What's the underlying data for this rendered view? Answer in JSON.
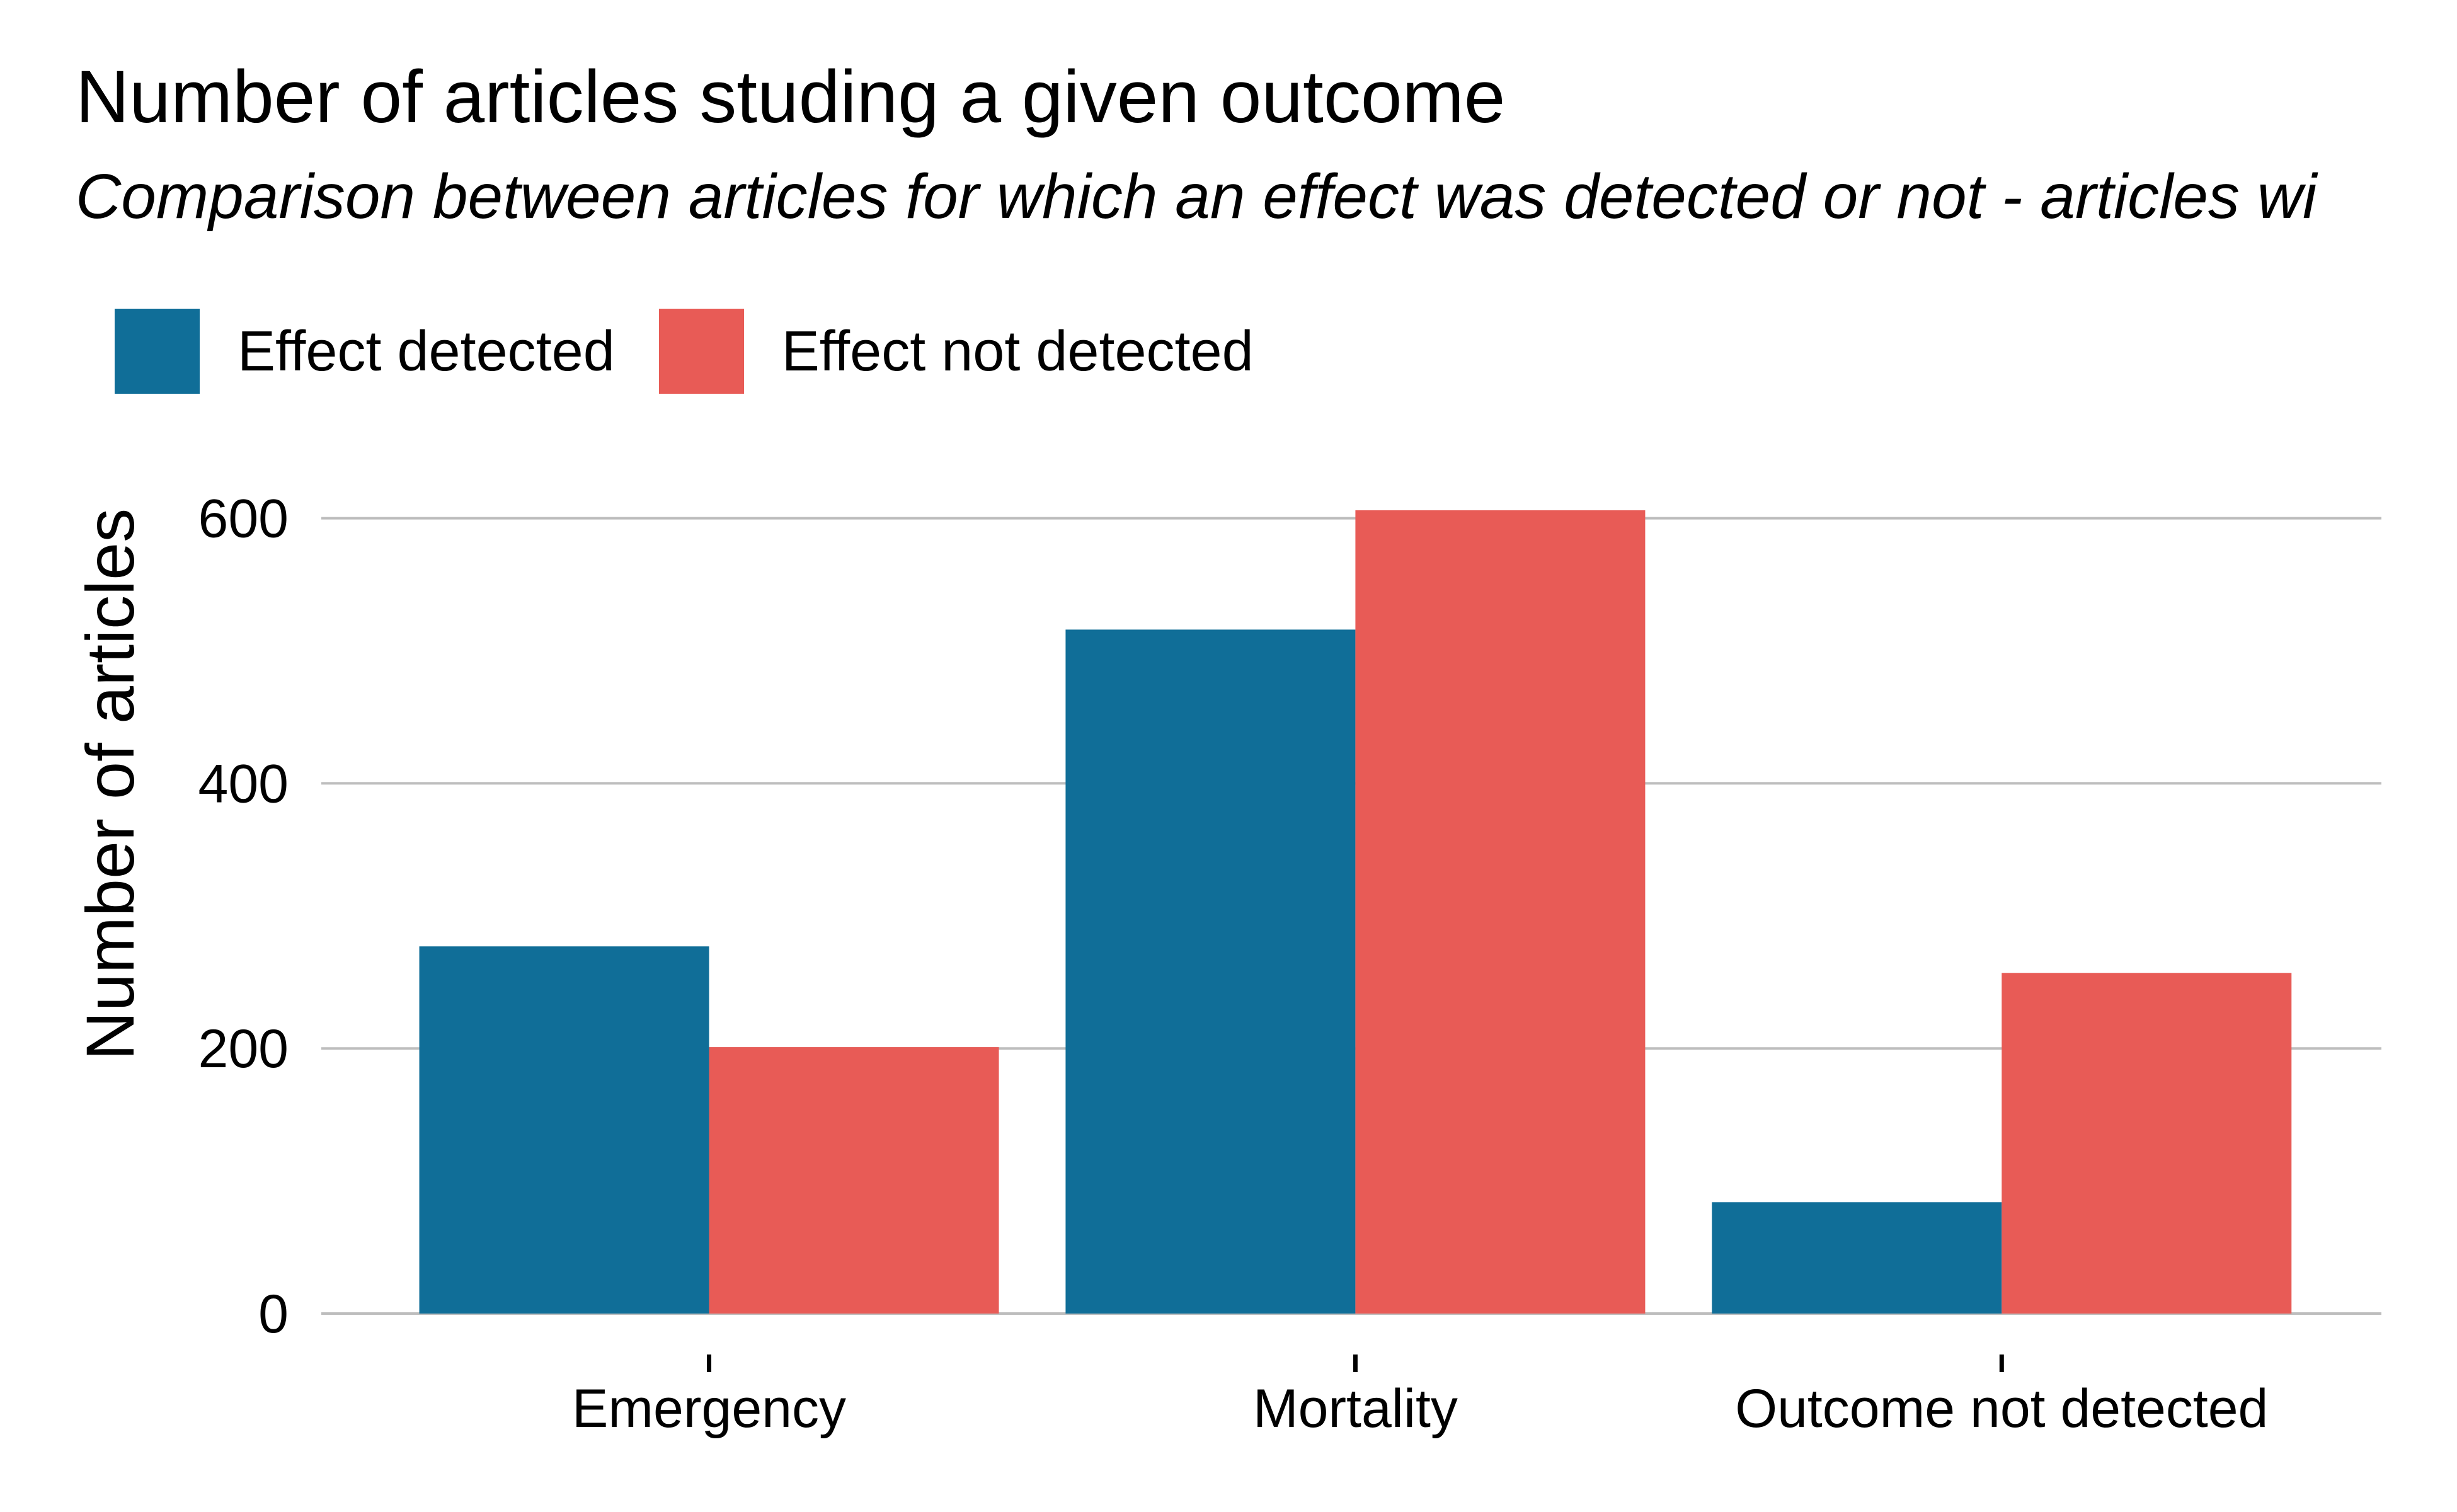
{
  "title": "Number of articles studing a given outcome",
  "subtitle": "Comparison between articles for which an effect was detected or not - articles wi",
  "legend": {
    "items": [
      {
        "label": "Effect detected",
        "color": "#106e98"
      },
      {
        "label": "Effect not detected",
        "color": "#e85b56"
      }
    ]
  },
  "chart_data": {
    "type": "bar",
    "title": "Number of articles studing a given outcome",
    "subtitle": "Comparison between articles for which an effect was detected or not - articles wi",
    "xlabel": "",
    "ylabel": "Number of articles",
    "categories": [
      "Emergency",
      "Mortality",
      "Outcome not detected"
    ],
    "series": [
      {
        "name": "Effect detected",
        "color": "#106e98",
        "values": [
          277,
          516,
          84
        ]
      },
      {
        "name": "Effect not detected",
        "color": "#e85b56",
        "values": [
          201,
          606,
          257
        ]
      }
    ],
    "ylim": [
      0,
      606
    ],
    "yticks": [
      0,
      200,
      400,
      600
    ],
    "grid": "horizontal",
    "legend_position": "top-left"
  }
}
